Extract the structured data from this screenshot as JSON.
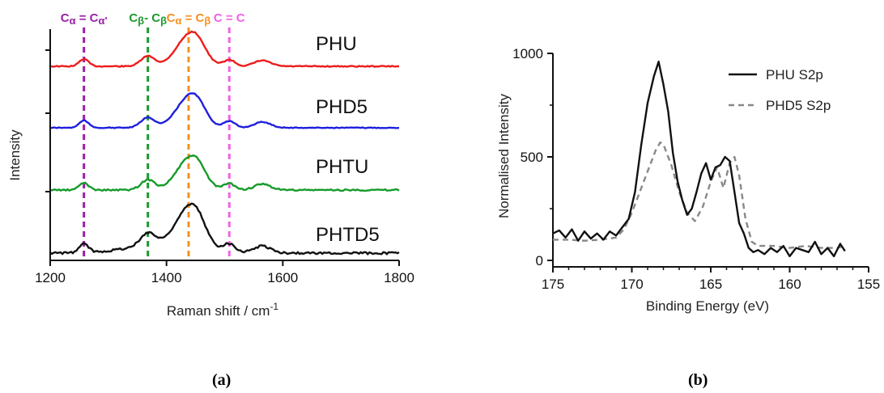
{
  "chart_data": [
    {
      "type": "line",
      "panel_label": "(a)",
      "xlabel": "Raman shift / cm",
      "xlabel_sup": "-1",
      "ylabel": "Intensity",
      "xlim": [
        1200,
        1800
      ],
      "xticks": [
        1200,
        1400,
        1600,
        1800
      ],
      "series": [
        {
          "name": "PHU",
          "color": "#ee1c1c"
        },
        {
          "name": "PHD5",
          "color": "#1f1fdd"
        },
        {
          "name": "PHTU",
          "color": "#159b2a"
        },
        {
          "name": "PHTD5",
          "color": "#111111"
        }
      ],
      "reference_lines": [
        {
          "x": 1258,
          "color": "#9b1fa8",
          "main": "C",
          "sub1": "α",
          "mid": " = C",
          "sub2": "α'"
        },
        {
          "x": 1368,
          "color": "#1c9a2d",
          "main": "C",
          "sub1": "β",
          "mid": "- C",
          "sub2": "β"
        },
        {
          "x": 1438,
          "color": "#f7901e",
          "main": "C",
          "sub1": "α",
          "mid": " = C",
          "sub2": "β"
        },
        {
          "x": 1508,
          "color": "#f062e6",
          "main": "C = C",
          "sub1": "",
          "mid": "",
          "sub2": ""
        }
      ]
    },
    {
      "type": "line",
      "panel_label": "(b)",
      "xlabel": "Binding Energy (eV)",
      "ylabel": "Normalised Intensity",
      "xlim": [
        175,
        155
      ],
      "ylim": [
        0,
        1000
      ],
      "xticks": [
        175,
        170,
        165,
        160,
        155
      ],
      "yticks": [
        0,
        500,
        1000
      ],
      "series": [
        {
          "name": "PHU S2p",
          "color": "#111111",
          "style": "solid",
          "x": [
            175,
            174.6,
            174.2,
            173.8,
            173.4,
            173,
            172.6,
            172.2,
            171.8,
            171.4,
            171,
            170.6,
            170.2,
            169.8,
            169.4,
            169,
            168.6,
            168.3,
            168,
            167.7,
            167.4,
            167.1,
            166.8,
            166.5,
            166.2,
            165.9,
            165.6,
            165.3,
            165,
            164.7,
            164.4,
            164.1,
            163.8,
            163.5,
            163.2,
            162.9,
            162.6,
            162.3,
            162,
            161.6,
            161.2,
            160.8,
            160.4,
            160,
            159.6,
            159.2,
            158.8,
            158.4,
            158,
            157.6,
            157.2,
            156.8,
            156.5
          ],
          "y": [
            130,
            145,
            110,
            150,
            95,
            140,
            105,
            130,
            100,
            140,
            120,
            160,
            200,
            330,
            560,
            760,
            890,
            960,
            850,
            720,
            520,
            380,
            290,
            220,
            250,
            330,
            420,
            470,
            390,
            450,
            460,
            500,
            480,
            330,
            180,
            130,
            60,
            40,
            50,
            30,
            60,
            40,
            70,
            20,
            60,
            50,
            40,
            90,
            30,
            60,
            20,
            80,
            45
          ]
        },
        {
          "name": "PHD5 S2p",
          "color": "#888888",
          "style": "dashed",
          "x": [
            175,
            174,
            173,
            172,
            171,
            170.5,
            170,
            169.5,
            169,
            168.5,
            168.2,
            168,
            167.5,
            167,
            166.5,
            166,
            165.5,
            165,
            164.6,
            164.2,
            163.8,
            163.5,
            163.2,
            162.8,
            162.4,
            162,
            161,
            160,
            159,
            158,
            157,
            156.5
          ],
          "y": [
            100,
            100,
            95,
            100,
            110,
            150,
            230,
            330,
            430,
            530,
            570,
            560,
            460,
            330,
            230,
            190,
            260,
            380,
            450,
            350,
            470,
            500,
            410,
            200,
            90,
            70,
            70,
            60,
            70,
            60,
            60,
            70
          ]
        }
      ],
      "legend_position": "top-right"
    }
  ]
}
